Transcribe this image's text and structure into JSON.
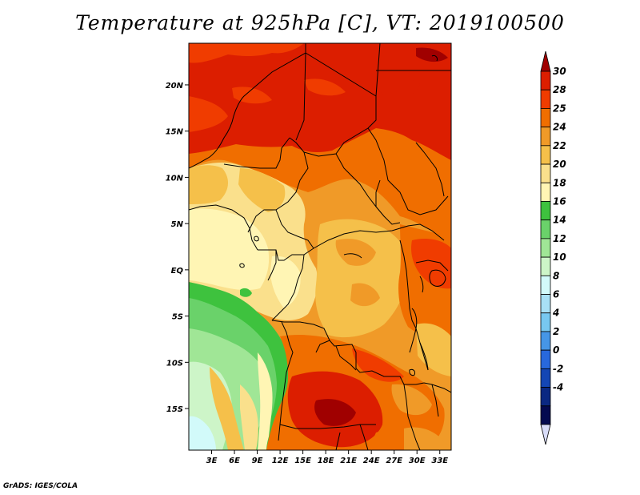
{
  "title": "Temperature at 925hPa [C], VT: 2019100500",
  "credit": "GrADS: IGES/COLA",
  "map": {
    "lon_range": [
      0,
      34.5
    ],
    "lat_range": [
      -19.5,
      24.5
    ],
    "lon_ticks": [
      "3E",
      "6E",
      "9E",
      "12E",
      "15E",
      "18E",
      "21E",
      "24E",
      "27E",
      "30E",
      "33E"
    ],
    "lat_ticks": [
      "20N",
      "15N",
      "10N",
      "5N",
      "EQ",
      "5S",
      "10S",
      "15S"
    ]
  },
  "colorbar": {
    "levels": [
      "30",
      "28",
      "25",
      "24",
      "22",
      "20",
      "18",
      "16",
      "14",
      "12",
      "10",
      "8",
      "6",
      "4",
      "2",
      "0",
      "-2",
      "-4"
    ],
    "colors": [
      "#a00000",
      "#dc1e00",
      "#f03c00",
      "#f06e00",
      "#f09a28",
      "#f5c04a",
      "#fae08c",
      "#fff5b4",
      "#3ec23e",
      "#6ad26a",
      "#a0e696",
      "#cdf5c8",
      "#d2fafa",
      "#a8e0f5",
      "#78c8f0",
      "#4696e6",
      "#2868dc",
      "#1446b4",
      "#0a2882",
      "#040a50",
      "#d8dcf8"
    ]
  }
}
